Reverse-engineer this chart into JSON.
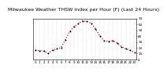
{
  "title": "Milwaukee Weather THSW Index per Hour (F) (Last 24 Hours)",
  "title_fontsize": 4.5,
  "tick_fontsize": 3.0,
  "bg_color": "#ffffff",
  "plot_bg_color": "#ffffff",
  "grid_color": "#aaaaaa",
  "line_color": "#dd0000",
  "marker_color": "#000000",
  "hours": [
    0,
    1,
    2,
    3,
    4,
    5,
    6,
    7,
    8,
    9,
    10,
    11,
    12,
    13,
    14,
    15,
    16,
    17,
    18,
    19,
    20,
    21,
    22,
    23
  ],
  "values": [
    20,
    19,
    18,
    14,
    20,
    22,
    24,
    38,
    52,
    60,
    65,
    70,
    69,
    66,
    56,
    44,
    36,
    35,
    36,
    32,
    26,
    22,
    20,
    16
  ],
  "ylim": [
    4,
    74
  ],
  "yticks": [
    4,
    14,
    24,
    34,
    44,
    54,
    64,
    74
  ],
  "xticks": [
    0,
    1,
    2,
    3,
    4,
    5,
    6,
    7,
    8,
    9,
    10,
    11,
    12,
    13,
    14,
    15,
    16,
    17,
    18,
    19,
    20,
    21,
    22,
    23
  ],
  "xlim": [
    -0.5,
    23.5
  ]
}
